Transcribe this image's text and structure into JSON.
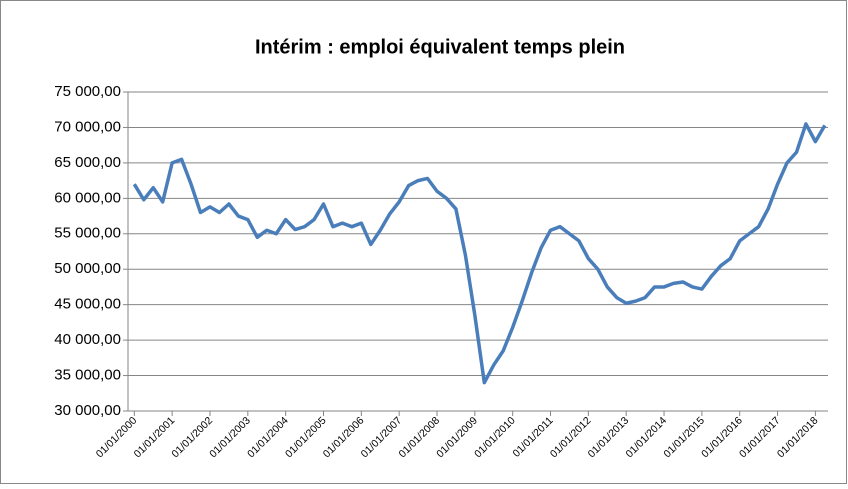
{
  "chart_data": {
    "type": "line",
    "title": "Intérim : emploi équivalent temps plein",
    "x": [
      "01/01/2000",
      "01/04/2000",
      "01/07/2000",
      "01/10/2000",
      "01/01/2001",
      "01/04/2001",
      "01/07/2001",
      "01/10/2001",
      "01/01/2002",
      "01/04/2002",
      "01/07/2002",
      "01/10/2002",
      "01/01/2003",
      "01/04/2003",
      "01/07/2003",
      "01/10/2003",
      "01/01/2004",
      "01/04/2004",
      "01/07/2004",
      "01/10/2004",
      "01/01/2005",
      "01/04/2005",
      "01/07/2005",
      "01/10/2005",
      "01/01/2006",
      "01/04/2006",
      "01/07/2006",
      "01/10/2006",
      "01/01/2007",
      "01/04/2007",
      "01/07/2007",
      "01/10/2007",
      "01/01/2008",
      "01/04/2008",
      "01/07/2008",
      "01/10/2008",
      "01/01/2009",
      "01/04/2009",
      "01/07/2009",
      "01/10/2009",
      "01/01/2010",
      "01/04/2010",
      "01/07/2010",
      "01/10/2010",
      "01/01/2011",
      "01/04/2011",
      "01/07/2011",
      "01/10/2011",
      "01/01/2012",
      "01/04/2012",
      "01/07/2012",
      "01/10/2012",
      "01/01/2013",
      "01/04/2013",
      "01/07/2013",
      "01/10/2013",
      "01/01/2014",
      "01/04/2014",
      "01/07/2014",
      "01/10/2014",
      "01/01/2015",
      "01/04/2015",
      "01/07/2015",
      "01/10/2015",
      "01/01/2016",
      "01/04/2016",
      "01/07/2016",
      "01/10/2016",
      "01/01/2017",
      "01/04/2017",
      "01/07/2017",
      "01/10/2017",
      "01/01/2018",
      "01/04/2018"
    ],
    "series": [
      {
        "name": "Intérim",
        "color": "#4a7ebb",
        "values": [
          62000,
          59800,
          61500,
          59500,
          65000,
          65500,
          62000,
          58000,
          58800,
          58000,
          59200,
          57500,
          57000,
          54500,
          55500,
          55000,
          57000,
          55600,
          56000,
          57000,
          59200,
          56000,
          56500,
          56000,
          56500,
          53500,
          55500,
          57800,
          59500,
          61800,
          62500,
          62800,
          61000,
          60000,
          58500,
          52000,
          43500,
          34000,
          36500,
          38500,
          41800,
          45500,
          49500,
          53000,
          55500,
          56000,
          55000,
          54000,
          51500,
          50000,
          47500,
          46000,
          45200,
          45500,
          46000,
          47500,
          47500,
          48000,
          48200,
          47500,
          47200,
          49000,
          50500,
          51500,
          54000,
          55000,
          56000,
          58500,
          62000,
          65000,
          66500,
          70500,
          68000,
          70300
        ]
      }
    ],
    "xlim": [
      "01/11/1999",
      "01/05/2018"
    ],
    "xticks": [
      "01/01/2000",
      "01/01/2001",
      "01/01/2002",
      "01/01/2003",
      "01/01/2004",
      "01/01/2005",
      "01/01/2006",
      "01/01/2007",
      "01/01/2008",
      "01/01/2009",
      "01/01/2010",
      "01/01/2011",
      "01/01/2012",
      "01/01/2013",
      "01/01/2014",
      "01/01/2015",
      "01/01/2016",
      "01/01/2017",
      "01/01/2018"
    ],
    "ylim": [
      30000,
      75000
    ],
    "yticks": [
      {
        "value": 30000,
        "label": "30 000,00"
      },
      {
        "value": 35000,
        "label": "35 000,00"
      },
      {
        "value": 40000,
        "label": "40 000,00"
      },
      {
        "value": 45000,
        "label": "45 000,00"
      },
      {
        "value": 50000,
        "label": "50 000,00"
      },
      {
        "value": 55000,
        "label": "55 000,00"
      },
      {
        "value": 60000,
        "label": "60 000,00"
      },
      {
        "value": 65000,
        "label": "65 000,00"
      },
      {
        "value": 70000,
        "label": "70 000,00"
      },
      {
        "value": 75000,
        "label": "75 000,00"
      }
    ],
    "grid": true
  }
}
